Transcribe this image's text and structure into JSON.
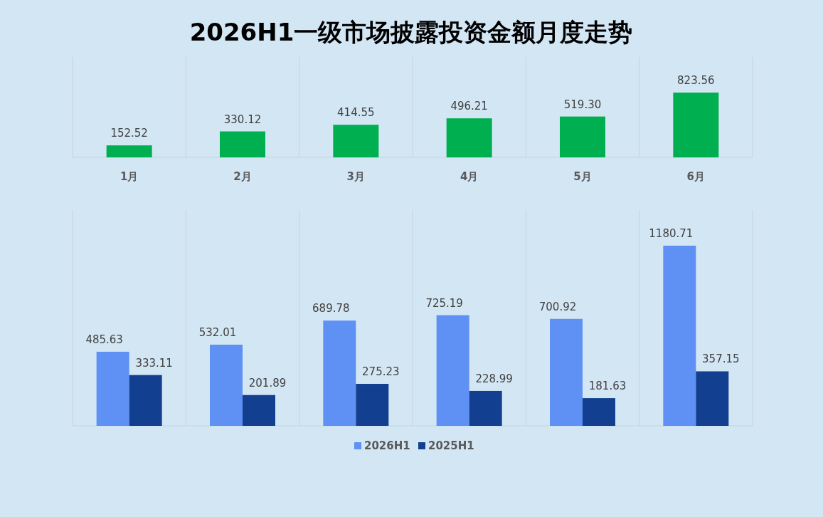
{
  "chart_data": [
    {
      "type": "bar",
      "title": "2026H1一级市场披露投资金额月度走势",
      "categories": [
        "1月",
        "2月",
        "3月",
        "4月",
        "5月",
        "6月"
      ],
      "values": [
        152.52,
        330.12,
        414.55,
        496.21,
        519.3,
        823.56
      ],
      "value_labels": [
        "152.52",
        "330.12",
        "414.55",
        "496.21",
        "519.30",
        "823.56"
      ],
      "color": "#00b050",
      "data_labels": true,
      "grid": "x"
    },
    {
      "type": "bar",
      "categories": [
        null,
        null,
        null,
        null,
        null,
        null
      ],
      "series": [
        {
          "name": "2026H1",
          "color": "#5f91f5",
          "values": [
            485.63,
            532.01,
            689.78,
            725.19,
            700.92,
            1180.71
          ]
        },
        {
          "name": "2025H1",
          "color": "#123f8f",
          "values": [
            333.11,
            201.89,
            275.23,
            228.99,
            181.63,
            357.15
          ]
        }
      ],
      "data_labels": true,
      "grid": "x",
      "legend": "bottom"
    }
  ]
}
